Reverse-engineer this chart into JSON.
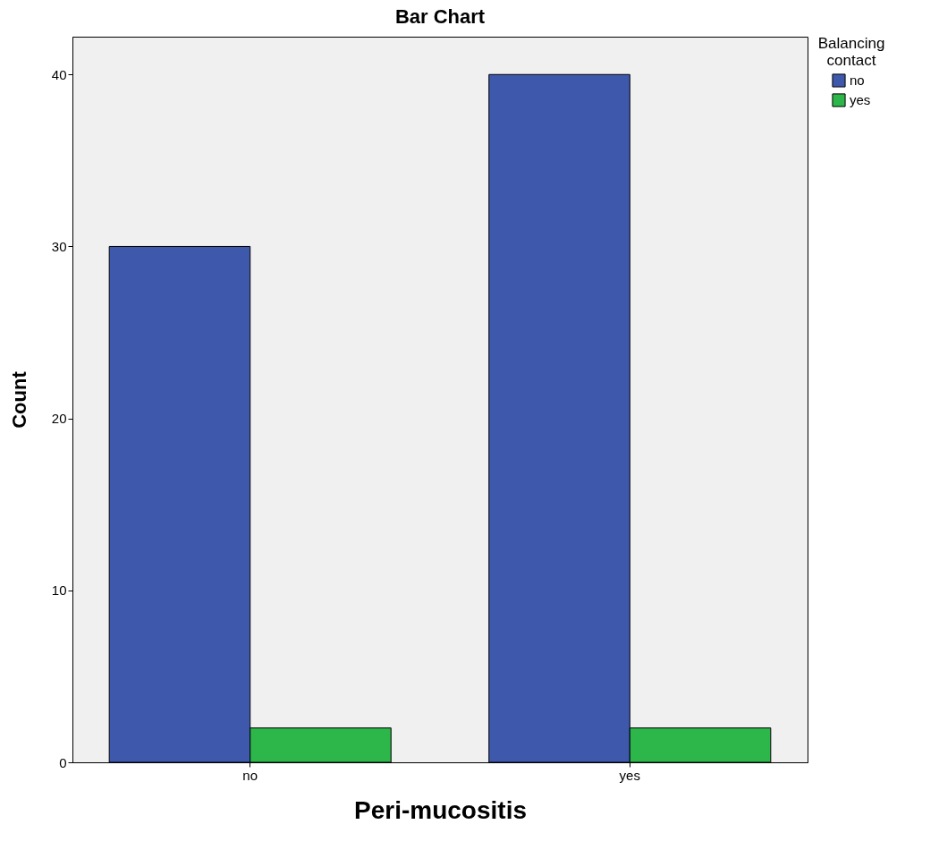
{
  "chart_data": {
    "type": "bar",
    "title": "Bar Chart",
    "xlabel": "Peri-mucositis",
    "ylabel": "Count",
    "legend_title": "Balancing contact",
    "categories": [
      "no",
      "yes"
    ],
    "series": [
      {
        "name": "no",
        "color": "#3e58ac",
        "values": [
          30,
          40
        ]
      },
      {
        "name": "yes",
        "color": "#2db74a",
        "values": [
          2,
          2
        ]
      }
    ],
    "ylim": [
      0,
      42.2
    ],
    "yticks": [
      0,
      10,
      20,
      30,
      40
    ],
    "grid": false,
    "legend": "top right"
  }
}
